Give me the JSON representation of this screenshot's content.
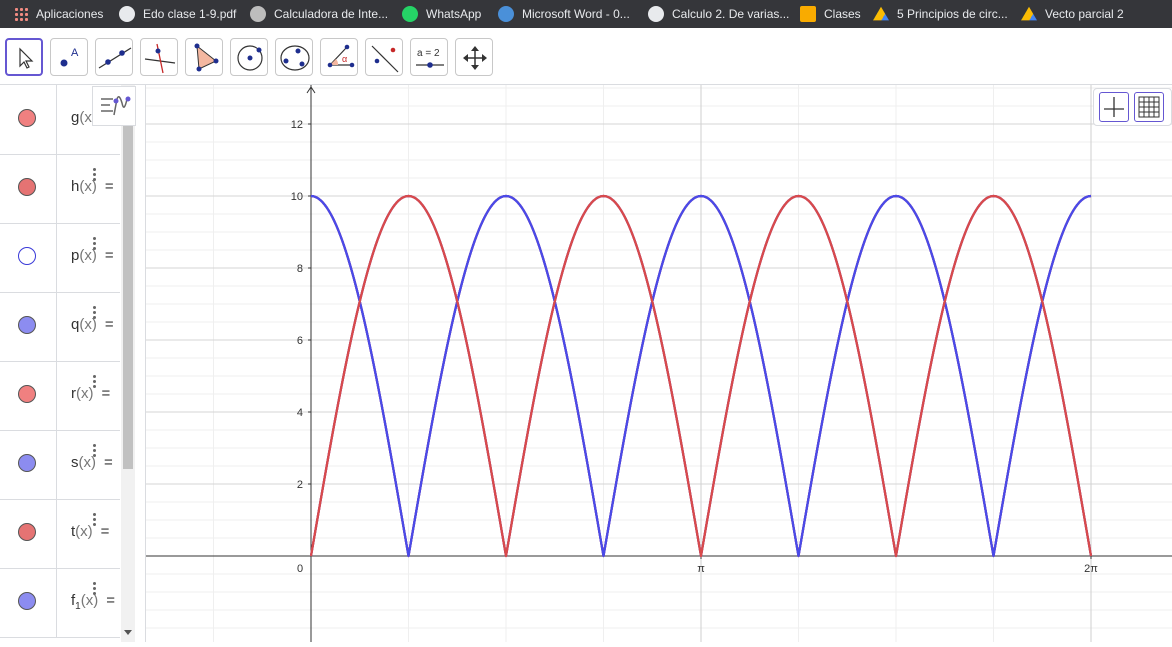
{
  "bookmarks": [
    {
      "label": "Aplicaciones",
      "icon": "apps-grid-icon",
      "color": "#f28b82"
    },
    {
      "label": "Edo clase 1-9.pdf",
      "icon": "globe-icon",
      "color": "#e8eaed"
    },
    {
      "label": "Calculadora de Inte...",
      "icon": "calculator-site-icon",
      "color": "#9aa0a6"
    },
    {
      "label": "WhatsApp",
      "icon": "whatsapp-icon",
      "color": "#25d366"
    },
    {
      "label": "Microsoft Word - 0...",
      "icon": "wordpress-icon",
      "color": "#4a90d9"
    },
    {
      "label": "Calculo 2. De varias...",
      "icon": "globe-icon",
      "color": "#e8eaed"
    },
    {
      "label": "Clases",
      "icon": "classroom-icon",
      "color": "#f9ab00"
    },
    {
      "label": "5 Principios de circ...",
      "icon": "google-drive-icon",
      "color": "#34a853"
    },
    {
      "label": "Vecto parcial 2",
      "icon": "google-drive-icon",
      "color": "#34a853"
    }
  ],
  "toolbar": {
    "tools": [
      {
        "name": "move-tool",
        "label": ""
      },
      {
        "name": "point-tool",
        "label": "A"
      },
      {
        "name": "line-tool",
        "label": ""
      },
      {
        "name": "perpendicular-line-tool",
        "label": ""
      },
      {
        "name": "polygon-tool",
        "label": ""
      },
      {
        "name": "circle-center-point-tool",
        "label": ""
      },
      {
        "name": "circle-three-points-tool",
        "label": ""
      },
      {
        "name": "angle-tool",
        "label": "α"
      },
      {
        "name": "reflect-tool",
        "label": ""
      },
      {
        "name": "slider-tool",
        "label": "a = 2"
      },
      {
        "name": "move-graphics-view-tool",
        "label": ""
      }
    ]
  },
  "algebra": {
    "rows": [
      {
        "name": "g",
        "sub": "",
        "color": "#f08080",
        "filled": true,
        "suffix": ""
      },
      {
        "name": "h",
        "sub": "",
        "color": "#e57373",
        "filled": true,
        "suffix": "="
      },
      {
        "name": "p",
        "sub": "",
        "color": "#3a3ad8",
        "filled": false,
        "suffix": "="
      },
      {
        "name": "q",
        "sub": "",
        "color": "#8c8cf0",
        "filled": true,
        "suffix": "="
      },
      {
        "name": "r",
        "sub": "",
        "color": "#f08080",
        "filled": true,
        "suffix": "="
      },
      {
        "name": "s",
        "sub": "",
        "color": "#8c8cf0",
        "filled": true,
        "suffix": "="
      },
      {
        "name": "t",
        "sub": "",
        "color": "#e57373",
        "filled": true,
        "suffix": "="
      },
      {
        "name": "f",
        "sub": "1",
        "color": "#8c8cf0",
        "filled": true,
        "suffix": "="
      }
    ]
  },
  "graphics": {
    "y_ticks": [
      "2",
      "4",
      "6",
      "8",
      "10",
      "12"
    ],
    "x_ticks": [
      "π",
      "2π"
    ],
    "origin_label": "0"
  },
  "chart_data": {
    "type": "line",
    "xlim": [
      0,
      6.2832
    ],
    "ylim": [
      0,
      13
    ],
    "amplitude": 10,
    "grid": true,
    "series": [
      {
        "phase_shift": 0.0,
        "color": "#c62828"
      },
      {
        "phase_shift": 0.7854,
        "color": "#ef5350"
      },
      {
        "phase_shift": 1.5708,
        "color": "#d94a4a"
      },
      {
        "phase_shift": 2.3562,
        "color": "#ef5350"
      },
      {
        "phase_shift": 3.1416,
        "color": "#4a4ae8"
      },
      {
        "phase_shift": 3.927,
        "color": "#4a4ae8"
      },
      {
        "phase_shift": 4.7124,
        "color": "#4a4ae8"
      },
      {
        "phase_shift": 5.4978,
        "color": "#d94a4a"
      }
    ]
  },
  "style_bar": {
    "axes_toggle": "axes-toggle-icon",
    "grid_toggle": "grid-toggle-icon"
  }
}
